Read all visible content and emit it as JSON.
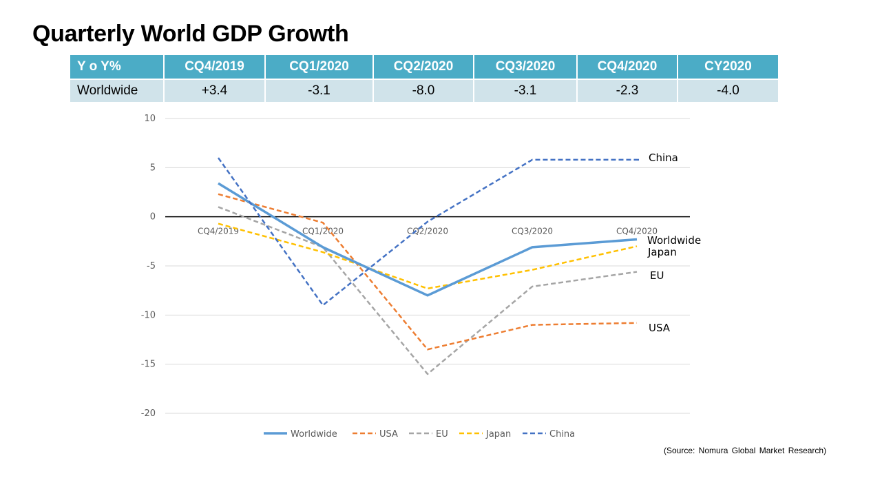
{
  "slide": {
    "title": "Quarterly World GDP Growth",
    "source": "(Source: Nomura Global Market Research)"
  },
  "table": {
    "headers": [
      "Y o Y%",
      "CQ4/2019",
      "CQ1/2020",
      "CQ2/2020",
      "CQ3/2020",
      "CQ4/2020",
      "CY2020"
    ],
    "rows": [
      [
        "Worldwide",
        "+3.4",
        "-3.1",
        "-8.0",
        "-3.1",
        "-2.3",
        "-4.0"
      ]
    ]
  },
  "chart_data": {
    "type": "line",
    "title": "",
    "xlabel": "",
    "ylabel": "",
    "categories": [
      "CQ4/2019",
      "CQ1/2020",
      "CQ2/2020",
      "CQ3/2020",
      "CQ4/2020"
    ],
    "ylim": [
      -20,
      10
    ],
    "yticks": [
      10,
      5,
      0,
      -5,
      -10,
      -15,
      -20
    ],
    "ytick_labels": [
      "10",
      "5",
      "0",
      "-5",
      "-10",
      "-15",
      "-20"
    ],
    "grid": true,
    "legend": "bottom",
    "series": [
      {
        "name": "Worldwide",
        "label": "Worldwide",
        "color": "#5b9bd5",
        "style": "solid",
        "values": [
          3.4,
          -3.1,
          -8.0,
          -3.1,
          -2.3
        ]
      },
      {
        "name": "USA",
        "label": "USA",
        "color": "#ed7d31",
        "style": "dashed",
        "values": [
          2.3,
          -0.6,
          -13.5,
          -11.0,
          -10.8
        ]
      },
      {
        "name": "EU",
        "label": "EU",
        "color": "#a5a5a5",
        "style": "dashed",
        "values": [
          1.0,
          -3.1,
          -16.0,
          -7.1,
          -5.6
        ]
      },
      {
        "name": "Japan",
        "label": "Japan",
        "color": "#ffc000",
        "style": "dashed",
        "values": [
          -0.7,
          -3.6,
          -7.3,
          -5.4,
          -3.0
        ]
      },
      {
        "name": "China",
        "label": "China",
        "color": "#4472c4",
        "style": "dashed",
        "values": [
          6.0,
          -9.0,
          -0.5,
          5.8,
          5.8
        ]
      }
    ]
  }
}
